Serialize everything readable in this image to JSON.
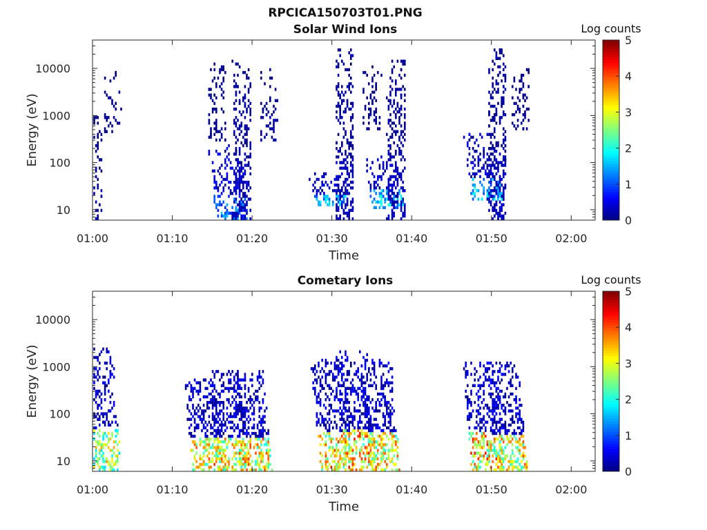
{
  "figure": {
    "title": "RPCICA150703T01.PNG"
  },
  "chart_data": [
    {
      "type": "heatmap",
      "title": "Solar Wind Ions",
      "xlabel": "Time",
      "ylabel": "Energy (eV)",
      "x_range": [
        "01:00",
        "02:03"
      ],
      "x_ticks": [
        "01:00",
        "01:10",
        "01:20",
        "01:30",
        "01:40",
        "01:50",
        "02:00"
      ],
      "y_scale": "log",
      "y_range": [
        6,
        40000
      ],
      "y_ticks": [
        10,
        100,
        1000,
        10000
      ],
      "y_tick_labels": [
        "10",
        "100",
        "1000",
        "10000"
      ],
      "colorbar": {
        "label": "Log counts",
        "range": [
          0,
          5
        ],
        "ticks": [
          "0",
          "1",
          "2",
          "3",
          "4",
          "5"
        ],
        "colormap": "jet"
      },
      "clusters": [
        {
          "t": 0.0,
          "emin": 6,
          "emax": 1000,
          "low": 0.2,
          "tail": 0.2,
          "density": 0.4
        },
        {
          "t": 2.5,
          "emin": 400,
          "emax": 9000,
          "low": 0.1,
          "tail": 0.2,
          "density": 0.25
        },
        {
          "t": 15.5,
          "emin": 300,
          "emax": 15000,
          "low": 0.1,
          "tail": 0.2,
          "density": 0.35
        },
        {
          "t": 17.5,
          "emin": 6,
          "emax": 250,
          "low": 1.2,
          "tail": 1.0,
          "density": 0.6
        },
        {
          "t": 18.6,
          "emin": 6,
          "emax": 15000,
          "low": 0.3,
          "tail": 0.4,
          "density": 0.6
        },
        {
          "t": 22.0,
          "emin": 300,
          "emax": 10000,
          "low": 0.2,
          "tail": 0.2,
          "density": 0.3
        },
        {
          "t": 30.0,
          "emin": 12,
          "emax": 60,
          "low": 1.5,
          "tail": 0.8,
          "density": 0.6
        },
        {
          "t": 31.5,
          "emin": 6,
          "emax": 30000,
          "low": 0.3,
          "tail": 0.4,
          "density": 0.6
        },
        {
          "t": 35.0,
          "emin": 500,
          "emax": 14000,
          "low": 0.1,
          "tail": 0.2,
          "density": 0.3
        },
        {
          "t": 37.0,
          "emin": 10,
          "emax": 150,
          "low": 1.6,
          "tail": 0.9,
          "density": 0.6
        },
        {
          "t": 38.0,
          "emin": 6,
          "emax": 15000,
          "low": 0.3,
          "tail": 0.4,
          "density": 0.6
        },
        {
          "t": 49.5,
          "emin": 15,
          "emax": 400,
          "low": 1.5,
          "tail": 0.9,
          "density": 0.6
        },
        {
          "t": 50.6,
          "emin": 6,
          "emax": 25000,
          "low": 0.3,
          "tail": 0.4,
          "density": 0.6
        },
        {
          "t": 53.5,
          "emin": 500,
          "emax": 10000,
          "low": 0.1,
          "tail": 0.2,
          "density": 0.3
        }
      ]
    },
    {
      "type": "heatmap",
      "title": "Cometary Ions",
      "xlabel": "Time",
      "ylabel": "Energy (eV)",
      "x_range": [
        "01:00",
        "02:03"
      ],
      "x_ticks": [
        "01:00",
        "01:10",
        "01:20",
        "01:30",
        "01:40",
        "01:50",
        "02:00"
      ],
      "y_scale": "log",
      "y_range": [
        6,
        40000
      ],
      "y_ticks": [
        10,
        100,
        1000,
        10000
      ],
      "y_tick_labels": [
        "10",
        "100",
        "1000",
        "10000"
      ],
      "colorbar": {
        "label": "Log counts",
        "range": [
          0,
          5
        ],
        "ticks": [
          "0",
          "1",
          "2",
          "3",
          "4",
          "5"
        ],
        "colormap": "jet"
      },
      "clusters": [
        {
          "t": 1.5,
          "emin": 6,
          "emax": 2500,
          "low": 2.8,
          "tail": 1.0,
          "density": 0.7
        },
        {
          "t": 14.5,
          "emin": 6,
          "emax": 600,
          "low": 3.2,
          "tail": 1.0,
          "density": 0.7
        },
        {
          "t": 17.5,
          "emin": 6,
          "emax": 800,
          "low": 3.0,
          "tail": 1.0,
          "density": 0.7
        },
        {
          "t": 20.5,
          "emin": 6,
          "emax": 800,
          "low": 3.2,
          "tail": 1.0,
          "density": 0.7
        },
        {
          "t": 30.5,
          "emin": 6,
          "emax": 1500,
          "low": 3.2,
          "tail": 1.0,
          "density": 0.7
        },
        {
          "t": 33.5,
          "emin": 6,
          "emax": 2200,
          "low": 3.3,
          "tail": 1.0,
          "density": 0.7
        },
        {
          "t": 36.5,
          "emin": 6,
          "emax": 1500,
          "low": 3.1,
          "tail": 1.0,
          "density": 0.7
        },
        {
          "t": 49.5,
          "emin": 6,
          "emax": 1300,
          "low": 3.3,
          "tail": 1.0,
          "density": 0.7
        },
        {
          "t": 52.5,
          "emin": 6,
          "emax": 1200,
          "low": 3.1,
          "tail": 1.0,
          "density": 0.7
        }
      ]
    }
  ]
}
